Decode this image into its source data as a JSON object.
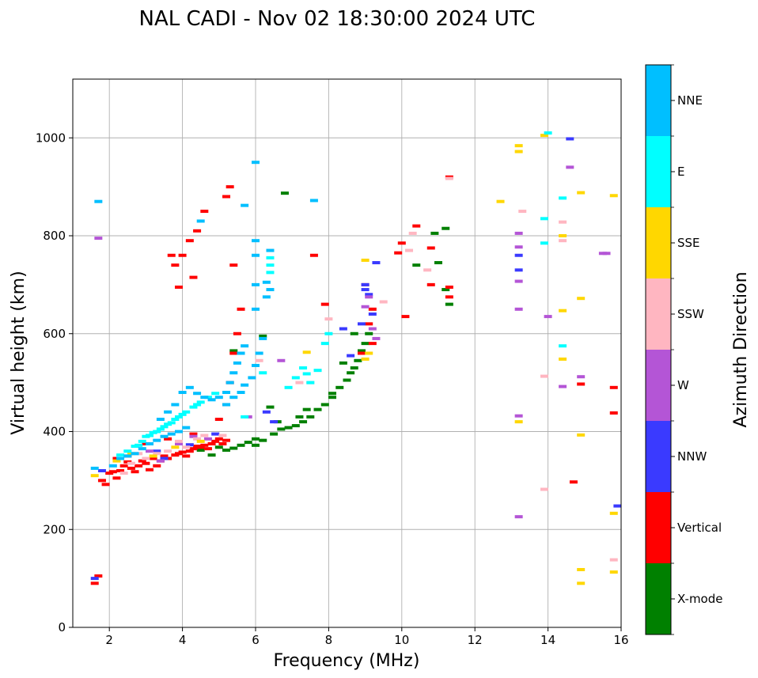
{
  "chart_data": {
    "type": "scatter",
    "title": "NAL CADI - Nov 02 18:30:00 2024 UTC",
    "xlabel": "Frequency (MHz)",
    "ylabel": "Virtual height (km)",
    "xlim": [
      1,
      16
    ],
    "ylim": [
      0,
      1120
    ],
    "xticks": [
      2,
      4,
      6,
      8,
      10,
      12,
      14,
      16
    ],
    "yticks": [
      0,
      200,
      400,
      600,
      800,
      1000
    ],
    "grid": true,
    "colorbar": {
      "label": "Azimuth Direction",
      "categories": [
        {
          "name": "X-mode",
          "color": "#008000"
        },
        {
          "name": "Vertical",
          "color": "#ff0000"
        },
        {
          "name": "NNW",
          "color": "#3a3aff"
        },
        {
          "name": "W",
          "color": "#b455d6"
        },
        {
          "name": "SSW",
          "color": "#ffb6c1"
        },
        {
          "name": "SSE",
          "color": "#ffd700"
        },
        {
          "name": "E",
          "color": "#00ffff"
        },
        {
          "name": "NNE",
          "color": "#00bfff"
        }
      ]
    },
    "series": [
      {
        "name": "X-mode",
        "points": [
          [
            5.0,
            368
          ],
          [
            5.2,
            362
          ],
          [
            5.4,
            366
          ],
          [
            5.6,
            372
          ],
          [
            5.8,
            378
          ],
          [
            6.0,
            385
          ],
          [
            6.2,
            382
          ],
          [
            6.0,
            372
          ],
          [
            6.5,
            395
          ],
          [
            6.7,
            405
          ],
          [
            6.9,
            408
          ],
          [
            7.1,
            412
          ],
          [
            7.3,
            420
          ],
          [
            7.5,
            430
          ],
          [
            7.7,
            445
          ],
          [
            7.9,
            455
          ],
          [
            8.1,
            478
          ],
          [
            8.3,
            490
          ],
          [
            8.5,
            505
          ],
          [
            8.6,
            520
          ],
          [
            8.7,
            530
          ],
          [
            8.8,
            545
          ],
          [
            8.9,
            565
          ],
          [
            9.0,
            580
          ],
          [
            9.1,
            600
          ],
          [
            8.7,
            600
          ],
          [
            7.2,
            430
          ],
          [
            7.4,
            445
          ],
          [
            6.4,
            450
          ],
          [
            6.6,
            420
          ],
          [
            6.2,
            595
          ],
          [
            5.4,
            565
          ],
          [
            6.8,
            887
          ],
          [
            10.4,
            740
          ],
          [
            10.9,
            805
          ],
          [
            11.2,
            815
          ],
          [
            11.2,
            690
          ],
          [
            11.3,
            660
          ],
          [
            11.0,
            745
          ],
          [
            8.1,
            470
          ],
          [
            8.4,
            540
          ],
          [
            4.8,
            352
          ],
          [
            4.5,
            362
          ]
        ]
      },
      {
        "name": "Vertical",
        "points": [
          [
            1.8,
            300
          ],
          [
            1.9,
            292
          ],
          [
            2.0,
            315
          ],
          [
            2.1,
            318
          ],
          [
            2.2,
            305
          ],
          [
            2.3,
            320
          ],
          [
            2.4,
            330
          ],
          [
            2.5,
            338
          ],
          [
            2.6,
            325
          ],
          [
            2.7,
            318
          ],
          [
            2.8,
            330
          ],
          [
            2.9,
            340
          ],
          [
            3.0,
            335
          ],
          [
            3.1,
            322
          ],
          [
            3.2,
            345
          ],
          [
            3.3,
            330
          ],
          [
            3.4,
            340
          ],
          [
            3.5,
            350
          ],
          [
            3.6,
            345
          ],
          [
            3.8,
            352
          ],
          [
            3.9,
            355
          ],
          [
            4.0,
            358
          ],
          [
            4.1,
            350
          ],
          [
            4.2,
            360
          ],
          [
            4.3,
            365
          ],
          [
            4.4,
            370
          ],
          [
            4.5,
            368
          ],
          [
            4.6,
            372
          ],
          [
            4.7,
            365
          ],
          [
            4.8,
            375
          ],
          [
            4.9,
            380
          ],
          [
            5.0,
            385
          ],
          [
            5.1,
            375
          ],
          [
            5.2,
            382
          ],
          [
            2.2,
            345
          ],
          [
            2.5,
            350
          ],
          [
            3.0,
            375
          ],
          [
            3.6,
            385
          ],
          [
            4.3,
            395
          ],
          [
            5.0,
            425
          ],
          [
            5.2,
            455
          ],
          [
            5.3,
            500
          ],
          [
            5.4,
            560
          ],
          [
            5.5,
            600
          ],
          [
            5.6,
            650
          ],
          [
            3.7,
            760
          ],
          [
            3.8,
            740
          ],
          [
            4.0,
            760
          ],
          [
            4.2,
            790
          ],
          [
            4.4,
            810
          ],
          [
            4.6,
            850
          ],
          [
            5.2,
            880
          ],
          [
            5.3,
            900
          ],
          [
            3.9,
            695
          ],
          [
            4.3,
            715
          ],
          [
            5.4,
            740
          ],
          [
            9.0,
            700
          ],
          [
            9.2,
            650
          ],
          [
            9.1,
            620
          ],
          [
            9.2,
            580
          ],
          [
            10.0,
            785
          ],
          [
            10.4,
            820
          ],
          [
            10.8,
            775
          ],
          [
            11.3,
            920
          ],
          [
            11.3,
            695
          ],
          [
            11.3,
            675
          ],
          [
            10.8,
            700
          ],
          [
            9.9,
            765
          ],
          [
            10.1,
            635
          ],
          [
            14.7,
            297
          ],
          [
            14.9,
            497
          ],
          [
            15.8,
            438
          ],
          [
            15.8,
            490
          ],
          [
            8.9,
            560
          ],
          [
            1.6,
            90
          ],
          [
            1.7,
            105
          ],
          [
            7.6,
            760
          ],
          [
            7.9,
            660
          ]
        ]
      },
      {
        "name": "NNW",
        "points": [
          [
            1.8,
            320
          ],
          [
            3.3,
            360
          ],
          [
            3.5,
            345
          ],
          [
            4.2,
            373
          ],
          [
            6.3,
            440
          ],
          [
            6.5,
            420
          ],
          [
            8.6,
            555
          ],
          [
            8.9,
            620
          ],
          [
            9.0,
            700
          ],
          [
            9.0,
            690
          ],
          [
            9.1,
            680
          ],
          [
            9.2,
            640
          ],
          [
            9.3,
            745
          ],
          [
            8.4,
            610
          ],
          [
            13.2,
            760
          ],
          [
            13.2,
            730
          ],
          [
            14.6,
            998
          ],
          [
            15.9,
            248
          ],
          [
            1.6,
            100
          ],
          [
            4.9,
            395
          ]
        ]
      },
      {
        "name": "W",
        "points": [
          [
            1.7,
            795
          ],
          [
            3.1,
            360
          ],
          [
            3.4,
            340
          ],
          [
            3.9,
            375
          ],
          [
            4.3,
            390
          ],
          [
            4.7,
            385
          ],
          [
            9.1,
            675
          ],
          [
            9.2,
            610
          ],
          [
            9.3,
            590
          ],
          [
            9.0,
            655
          ],
          [
            13.2,
            805
          ],
          [
            13.2,
            777
          ],
          [
            13.2,
            707
          ],
          [
            13.2,
            650
          ],
          [
            13.2,
            432
          ],
          [
            13.2,
            226
          ],
          [
            14.0,
            635
          ],
          [
            14.4,
            492
          ],
          [
            14.6,
            940
          ],
          [
            14.9,
            512
          ],
          [
            15.5,
            764
          ],
          [
            15.6,
            764
          ],
          [
            5.8,
            430
          ],
          [
            6.7,
            545
          ]
        ]
      },
      {
        "name": "SSW",
        "points": [
          [
            2.6,
            335
          ],
          [
            2.8,
            355
          ],
          [
            3.0,
            345
          ],
          [
            3.3,
            355
          ],
          [
            3.6,
            360
          ],
          [
            3.9,
            380
          ],
          [
            4.1,
            368
          ],
          [
            4.4,
            385
          ],
          [
            4.6,
            392
          ],
          [
            5.1,
            392
          ],
          [
            2.4,
            315
          ],
          [
            7.2,
            500
          ],
          [
            7.5,
            500
          ],
          [
            8.0,
            630
          ],
          [
            9.5,
            665
          ],
          [
            10.2,
            770
          ],
          [
            10.3,
            805
          ],
          [
            13.3,
            850
          ],
          [
            13.9,
            513
          ],
          [
            13.9,
            282
          ],
          [
            14.4,
            828
          ],
          [
            14.4,
            790
          ],
          [
            15.8,
            138
          ],
          [
            11.3,
            917
          ],
          [
            10.7,
            730
          ],
          [
            6.1,
            545
          ]
        ]
      },
      {
        "name": "SSE",
        "points": [
          [
            1.6,
            310
          ],
          [
            2.2,
            340
          ],
          [
            2.6,
            355
          ],
          [
            3.2,
            350
          ],
          [
            3.8,
            368
          ],
          [
            4.5,
            380
          ],
          [
            9.0,
            548
          ],
          [
            9.1,
            560
          ],
          [
            12.7,
            870
          ],
          [
            13.2,
            984
          ],
          [
            13.2,
            972
          ],
          [
            13.2,
            420
          ],
          [
            13.9,
            1005
          ],
          [
            14.4,
            800
          ],
          [
            14.4,
            647
          ],
          [
            14.4,
            548
          ],
          [
            14.9,
            888
          ],
          [
            14.9,
            672
          ],
          [
            14.9,
            393
          ],
          [
            14.9,
            118
          ],
          [
            14.9,
            90
          ],
          [
            15.8,
            882
          ],
          [
            15.8,
            233
          ],
          [
            15.8,
            113
          ],
          [
            9.0,
            750
          ],
          [
            7.4,
            562
          ]
        ]
      },
      {
        "name": "E",
        "points": [
          [
            2.3,
            352
          ],
          [
            2.5,
            360
          ],
          [
            2.7,
            370
          ],
          [
            2.9,
            380
          ],
          [
            3.1,
            392
          ],
          [
            3.3,
            400
          ],
          [
            3.5,
            410
          ],
          [
            3.7,
            418
          ],
          [
            3.9,
            430
          ],
          [
            4.1,
            440
          ],
          [
            4.3,
            450
          ],
          [
            4.5,
            460
          ],
          [
            4.7,
            470
          ],
          [
            4.9,
            478
          ],
          [
            2.8,
            372
          ],
          [
            3.0,
            390
          ],
          [
            3.2,
            398
          ],
          [
            3.4,
            405
          ],
          [
            3.6,
            415
          ],
          [
            3.8,
            425
          ],
          [
            4.0,
            435
          ],
          [
            4.4,
            455
          ],
          [
            6.9,
            490
          ],
          [
            7.1,
            510
          ],
          [
            7.3,
            530
          ],
          [
            7.5,
            500
          ],
          [
            7.7,
            525
          ],
          [
            7.9,
            580
          ],
          [
            8.0,
            600
          ],
          [
            6.4,
            755
          ],
          [
            6.4,
            725
          ],
          [
            6.4,
            740
          ],
          [
            13.9,
            835
          ],
          [
            13.9,
            785
          ],
          [
            14.4,
            877
          ],
          [
            14.4,
            575
          ],
          [
            14.0,
            1010
          ],
          [
            7.4,
            518
          ],
          [
            6.2,
            520
          ],
          [
            5.7,
            430
          ]
        ]
      },
      {
        "name": "NNE",
        "points": [
          [
            1.6,
            325
          ],
          [
            1.7,
            870
          ],
          [
            2.1,
            330
          ],
          [
            2.3,
            345
          ],
          [
            2.5,
            350
          ],
          [
            2.7,
            355
          ],
          [
            2.9,
            365
          ],
          [
            3.1,
            375
          ],
          [
            3.3,
            382
          ],
          [
            3.5,
            390
          ],
          [
            3.7,
            395
          ],
          [
            3.9,
            400
          ],
          [
            4.1,
            408
          ],
          [
            3.4,
            425
          ],
          [
            3.6,
            440
          ],
          [
            3.8,
            455
          ],
          [
            4.0,
            480
          ],
          [
            4.2,
            490
          ],
          [
            4.4,
            478
          ],
          [
            4.6,
            470
          ],
          [
            4.8,
            465
          ],
          [
            5.0,
            470
          ],
          [
            5.2,
            480
          ],
          [
            5.3,
            500
          ],
          [
            5.4,
            520
          ],
          [
            5.5,
            540
          ],
          [
            5.6,
            560
          ],
          [
            5.7,
            575
          ],
          [
            5.2,
            455
          ],
          [
            5.4,
            470
          ],
          [
            5.6,
            480
          ],
          [
            5.7,
            495
          ],
          [
            5.9,
            510
          ],
          [
            6.0,
            535
          ],
          [
            6.1,
            560
          ],
          [
            6.2,
            590
          ],
          [
            6.0,
            650
          ],
          [
            6.0,
            700
          ],
          [
            6.0,
            760
          ],
          [
            6.0,
            790
          ],
          [
            6.0,
            950
          ],
          [
            6.3,
            705
          ],
          [
            6.3,
            675
          ],
          [
            6.4,
            770
          ],
          [
            6.4,
            690
          ],
          [
            5.7,
            862
          ],
          [
            4.5,
            830
          ],
          [
            7.6,
            872
          ]
        ]
      }
    ]
  }
}
